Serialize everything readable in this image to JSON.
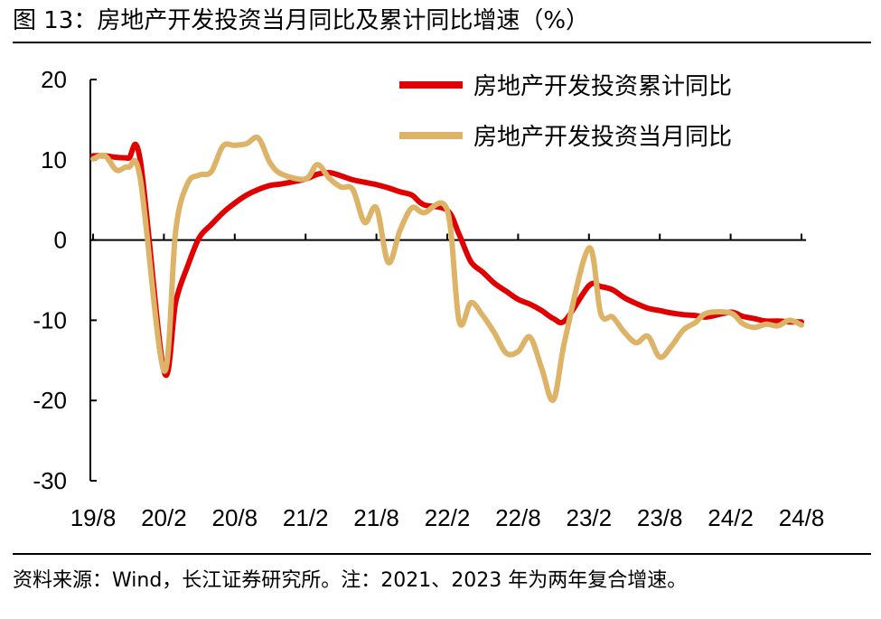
{
  "header": {
    "title": "图 13：房地产开发投资当月同比及累计同比增速（%）"
  },
  "footer": {
    "source": "资料来源：Wind，长江证券研究所。注：2021、2023 年为两年复合增速。"
  },
  "colors": {
    "cumulative": "#e00000",
    "monthly": "#dcb367",
    "axis": "#000000"
  },
  "chart_data": {
    "type": "line",
    "title": "图 13：房地产开发投资当月同比及累计同比增速（%）",
    "xlabel": "",
    "ylabel": "",
    "ylim": [
      -30,
      20
    ],
    "yticks": [
      20,
      10,
      0,
      -10,
      -20,
      -30
    ],
    "categories": [
      "19/8",
      "19/9",
      "19/10",
      "19/11",
      "19/12",
      "20/1",
      "20/2",
      "20/3",
      "20/4",
      "20/5",
      "20/6",
      "20/7",
      "20/8",
      "20/9",
      "20/10",
      "20/11",
      "20/12",
      "21/1",
      "21/2",
      "21/3",
      "21/4",
      "21/5",
      "21/6",
      "21/7",
      "21/8",
      "21/9",
      "21/10",
      "21/11",
      "21/12",
      "22/1",
      "22/2",
      "22/3",
      "22/4",
      "22/5",
      "22/6",
      "22/7",
      "22/8",
      "22/9",
      "22/10",
      "22/11",
      "22/12",
      "23/1",
      "23/2",
      "23/3",
      "23/4",
      "23/5",
      "23/6",
      "23/7",
      "23/8",
      "23/9",
      "23/10",
      "23/11",
      "23/12",
      "24/1",
      "24/2",
      "24/3",
      "24/4",
      "24/5",
      "24/6",
      "24/7",
      "24/8"
    ],
    "xtick_labels": [
      "19/8",
      "20/2",
      "20/8",
      "21/2",
      "21/8",
      "22/2",
      "22/8",
      "23/2",
      "23/8",
      "24/2",
      "24/8"
    ],
    "legend": {
      "position": "top-right"
    },
    "series": [
      {
        "name": "房地产开发投资累计同比",
        "values": [
          10.5,
          10.5,
          10.3,
          10.2,
          9.9,
          null,
          -16.3,
          -7.7,
          -3.3,
          0.3,
          1.9,
          3.4,
          4.6,
          5.6,
          6.3,
          6.8,
          7.0,
          null,
          7.6,
          8.2,
          8.4,
          8.0,
          7.5,
          7.2,
          6.9,
          6.5,
          6.0,
          5.6,
          4.4,
          null,
          3.7,
          0.7,
          -2.7,
          -4.0,
          -5.4,
          -6.4,
          -7.4,
          -8.0,
          -8.8,
          -9.8,
          -10.0,
          null,
          -5.7,
          -5.8,
          -6.2,
          -7.2,
          -7.9,
          -8.5,
          -8.8,
          -9.1,
          -9.3,
          -9.4,
          -9.6,
          null,
          -9.0,
          -9.5,
          -9.8,
          -10.1,
          -10.1,
          -10.2,
          -10.2
        ],
        "color": "#e00000"
      },
      {
        "name": "房地产开发投资当月同比",
        "values": [
          10.1,
          10.5,
          8.7,
          9.1,
          7.6,
          null,
          -16.3,
          1.2,
          7.0,
          8.1,
          8.5,
          11.7,
          11.8,
          12.0,
          12.7,
          9.6,
          8.2,
          null,
          7.6,
          9.4,
          7.7,
          6.6,
          6.3,
          2.2,
          4.0,
          -2.8,
          1.2,
          4.0,
          3.4,
          null,
          3.7,
          -10.1,
          -7.8,
          -9.4,
          -11.6,
          -14.1,
          -13.9,
          -12.1,
          -16.0,
          -19.9,
          -12.2,
          null,
          -1.0,
          -9.2,
          -9.6,
          -11.5,
          -12.8,
          -12.0,
          -14.6,
          -13.2,
          -11.2,
          -10.3,
          -9.1,
          null,
          -9.1,
          -10.4,
          -10.9,
          -10.5,
          -10.7,
          -10.0,
          -10.6
        ],
        "color": "#dcb367"
      }
    ]
  }
}
